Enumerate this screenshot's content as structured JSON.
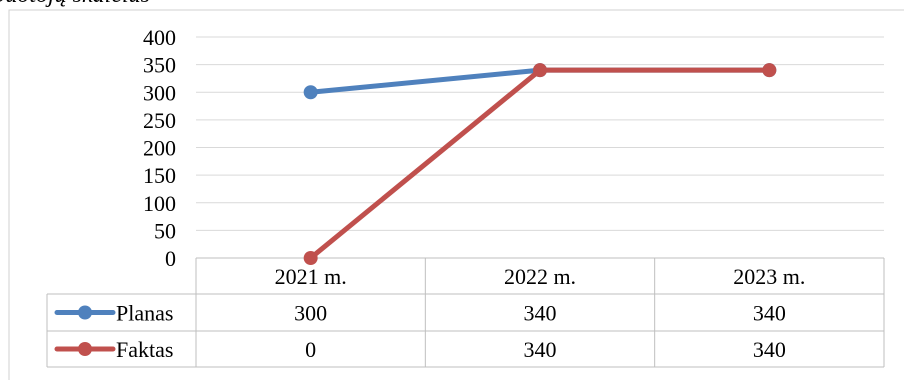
{
  "caption_fragment": "darbuotojų skaičius",
  "chart_data": {
    "type": "line",
    "categories": [
      "2021 m.",
      "2022 m.",
      "2023 m."
    ],
    "yticks": [
      0,
      50,
      100,
      150,
      200,
      250,
      300,
      350,
      400
    ],
    "ylim": [
      0,
      400
    ],
    "grid": true,
    "legend": "data-table-left",
    "series": [
      {
        "name": "Planas",
        "values": [
          300,
          340,
          340
        ],
        "color": "#4F81BD",
        "value_labels": [
          "300",
          "340",
          "340"
        ]
      },
      {
        "name": "Faktas",
        "values": [
          0,
          340,
          340
        ],
        "color": "#C0504D",
        "value_labels": [
          "0",
          "340",
          "340"
        ]
      }
    ]
  }
}
